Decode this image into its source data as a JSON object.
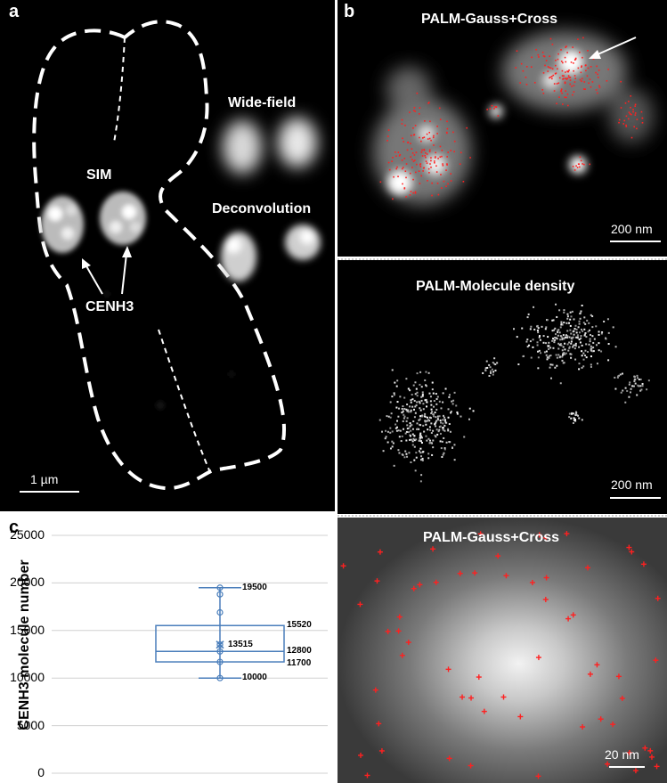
{
  "panel_a": {
    "letter": "a",
    "sim_label": "SIM",
    "widefield_label": "Wide-field",
    "deconvolution_label": "Deconvolution",
    "cenh3_label": "CENH3",
    "scale_label": "1 µm"
  },
  "panel_b": {
    "letter": "b",
    "top_title": "PALM-Gauss+Cross",
    "top_scale": "200 nm",
    "mid_title": "PALM-Molecule density",
    "mid_scale": "200 nm",
    "bottom_title": "PALM-Gauss+Cross",
    "bottom_scale": "20 nm"
  },
  "panel_c": {
    "letter": "c"
  },
  "chart_data": {
    "type": "box",
    "ylabel": "CENH3 molecule number",
    "ylim": [
      0,
      25000
    ],
    "yticks": [
      "0",
      "5000",
      "10000",
      "15000",
      "20000",
      "25000"
    ],
    "grid": true,
    "box": {
      "min": 10000,
      "q1": 11700,
      "median": 12800,
      "mean": 13515,
      "q3": 15520,
      "max": 19500
    },
    "points": [
      10000,
      11700,
      12800,
      13515,
      16900,
      18800,
      19500
    ],
    "labels": [
      "19500",
      "15520",
      "13515",
      "12800",
      "11700",
      "10000"
    ],
    "colors": {
      "box": "#4a7ebb",
      "grid": "#d0d0d0"
    }
  },
  "colors": {
    "annotation": "#ffffff",
    "cross": "#ff2020",
    "divider": "#cccccc"
  }
}
